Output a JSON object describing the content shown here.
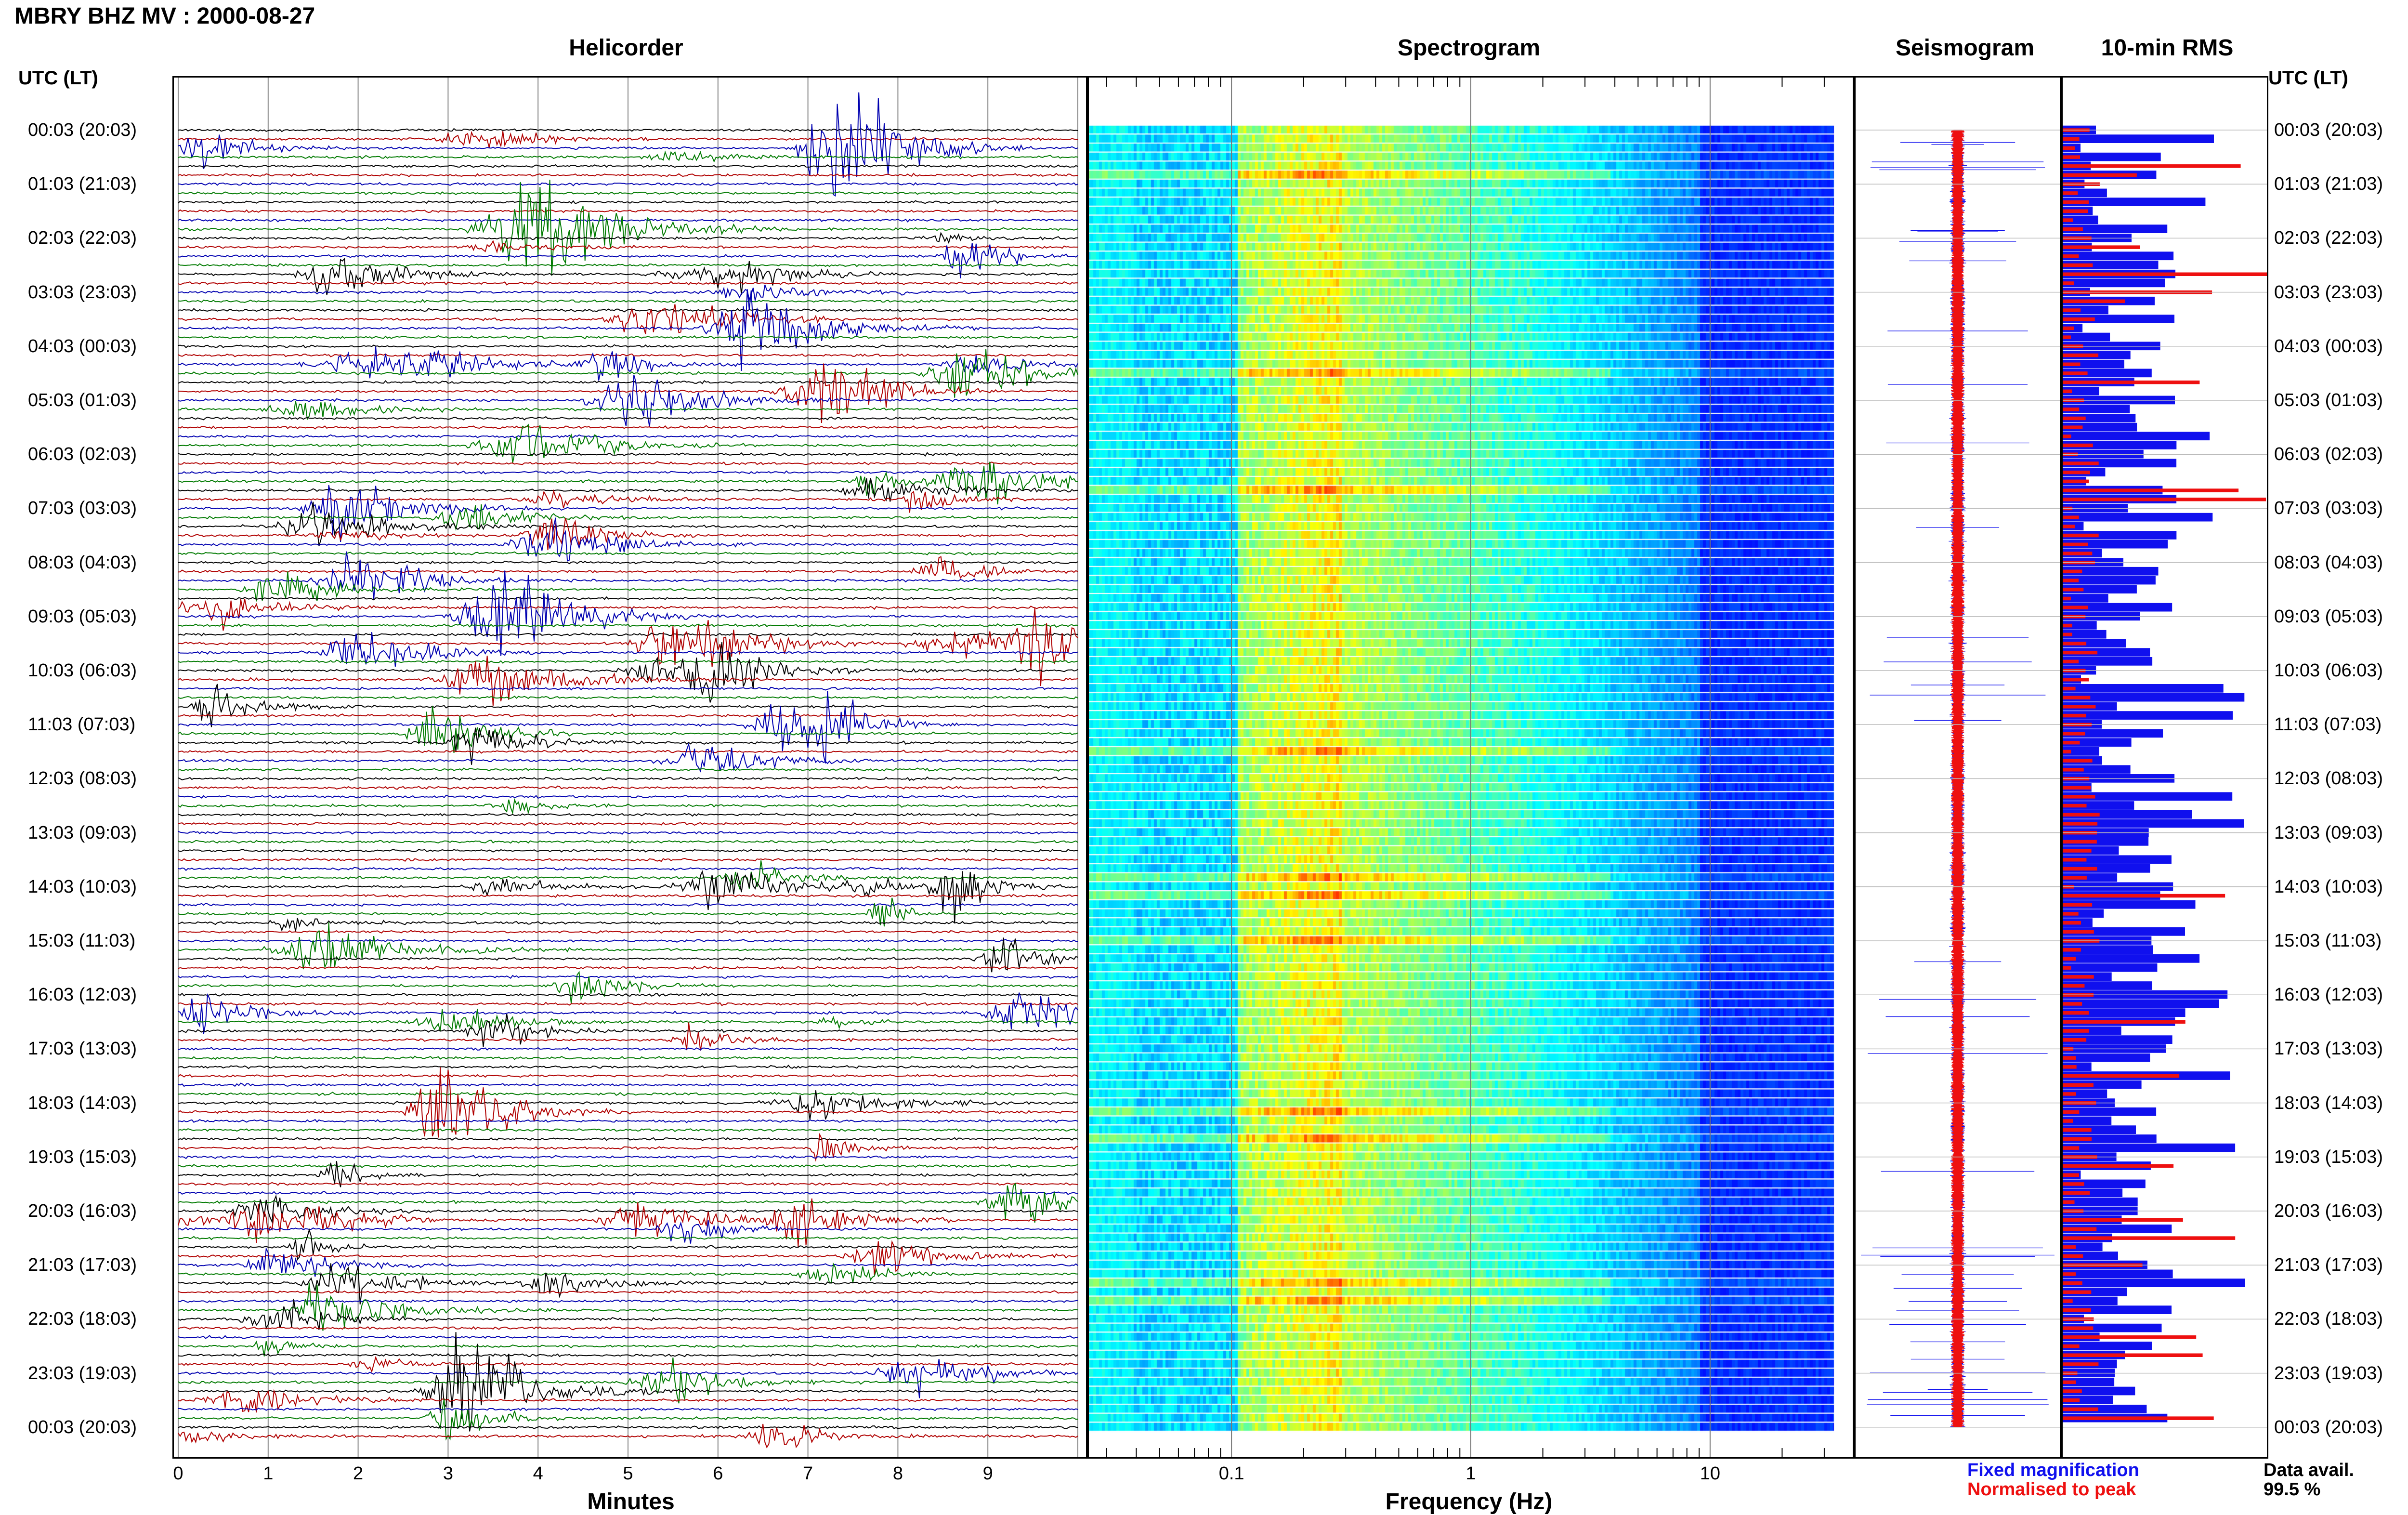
{
  "header": {
    "title": "MBRY BHZ MV : 2000-08-27"
  },
  "panels": {
    "helicorder": "Helicorder",
    "spectrogram": "Spectrogram",
    "seismogram": "Seismogram",
    "rms": "10-min RMS"
  },
  "axis_header": {
    "left": "UTC (LT)",
    "right": "UTC (LT)"
  },
  "time_labels": [
    "00:03 (20:03)",
    "01:03 (21:03)",
    "02:03 (22:03)",
    "03:03 (23:03)",
    "04:03 (00:03)",
    "05:03 (01:03)",
    "06:03 (02:03)",
    "07:03 (03:03)",
    "08:03 (04:03)",
    "09:03 (05:03)",
    "10:03 (06:03)",
    "11:03 (07:03)",
    "12:03 (08:03)",
    "13:03 (09:03)",
    "14:03 (10:03)",
    "15:03 (11:03)",
    "16:03 (12:03)",
    "17:03 (13:03)",
    "18:03 (14:03)",
    "19:03 (15:03)",
    "20:03 (16:03)",
    "21:03 (17:03)",
    "22:03 (18:03)",
    "23:03 (19:03)",
    "00:03 (20:03)"
  ],
  "minutes_axis": {
    "ticks": [
      "0",
      "1",
      "2",
      "3",
      "4",
      "5",
      "6",
      "7",
      "8",
      "9"
    ],
    "label": "Minutes"
  },
  "frequency_axis": {
    "ticks": [
      "0.1",
      "1",
      "10"
    ],
    "label": "Frequency (Hz)"
  },
  "legend": {
    "fixed": "Fixed magnification",
    "normalised": "Normalised to peak",
    "fixed_color": "#1010ee",
    "normalised_color": "#ee1010"
  },
  "data_availability": {
    "label": "Data avail.",
    "value": "99.5 %"
  },
  "colors": {
    "trace_cycle": [
      "#000000",
      "#cc0000",
      "#0000cc",
      "#008000"
    ]
  },
  "chart_data": [
    {
      "type": "line",
      "title": "Helicorder",
      "xlabel": "Minutes",
      "xlim": [
        0,
        10
      ],
      "rows_per_hour": 6,
      "rows": 145,
      "trace_colors": [
        "black",
        "red",
        "blue",
        "green"
      ]
    },
    {
      "type": "heatmap",
      "title": "Spectrogram",
      "xlabel": "Frequency (Hz)",
      "xscale": "log",
      "xlim": [
        0.025,
        40
      ],
      "colormap": "jet"
    },
    {
      "type": "line",
      "title": "Seismogram",
      "series": [
        {
          "name": "Fixed magnification",
          "color": "blue"
        },
        {
          "name": "Normalised to peak",
          "color": "red"
        }
      ]
    },
    {
      "type": "bar",
      "title": "10-min RMS",
      "orientation": "horizontal",
      "series": [
        {
          "name": "Fixed magnification",
          "color": "blue"
        },
        {
          "name": "Normalised to peak",
          "color": "red"
        }
      ]
    }
  ]
}
